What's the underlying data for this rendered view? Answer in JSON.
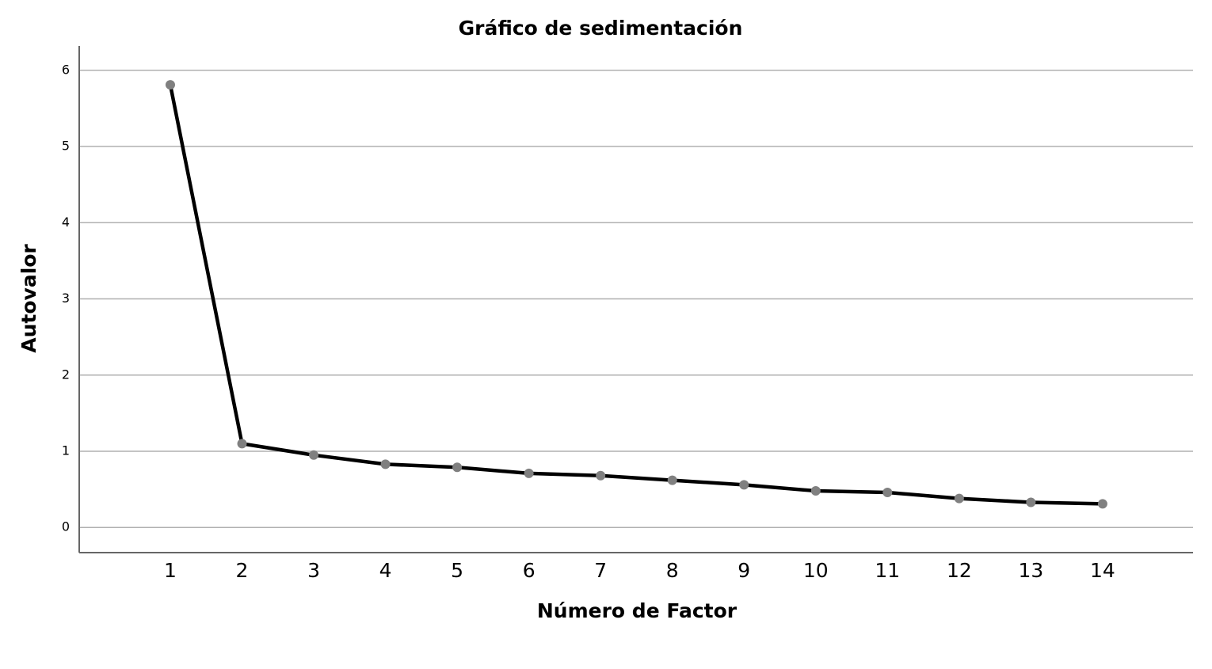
{
  "chart_data": {
    "type": "line",
    "title": "Gráfico de sedimentación",
    "x_label": "Número de Factor",
    "y_label": "Autovalor",
    "x": [
      1,
      2,
      3,
      4,
      5,
      6,
      7,
      8,
      9,
      10,
      11,
      12,
      13,
      14
    ],
    "series": [
      {
        "name": "Autovalor",
        "color": "#000000",
        "marker_color": "#808080",
        "values": [
          5.81,
          1.1,
          0.95,
          0.83,
          0.79,
          0.71,
          0.68,
          0.62,
          0.56,
          0.48,
          0.46,
          0.38,
          0.33,
          0.31
        ]
      }
    ],
    "xlim": [
      -0.27,
      15.26
    ],
    "xticks": [
      1,
      2,
      3,
      4,
      5,
      6,
      7,
      8,
      9,
      10,
      11,
      12,
      13,
      14
    ],
    "ylim": [
      -0.33,
      6.32
    ],
    "yticks": [
      0,
      1,
      2,
      3,
      4,
      5,
      6
    ],
    "grid": true
  }
}
